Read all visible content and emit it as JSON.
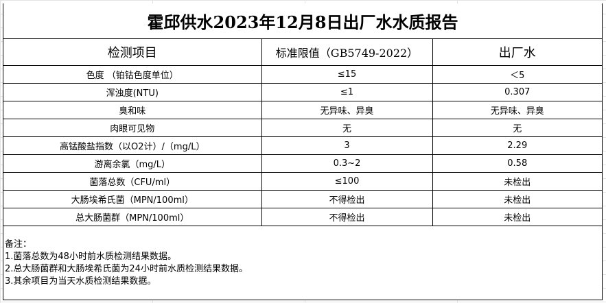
{
  "title": "霍邱供水2023年12月8日出厂水水质报告",
  "columns": [
    "检测项目",
    "标准限值（GB5749-2022）",
    "出厂水"
  ],
  "rows": [
    [
      "色度 （铂钴色度单位）",
      "≤15",
      "＜5"
    ],
    [
      "浑浊度(NTU)",
      "≤1",
      "0.307"
    ],
    [
      "臭和味",
      "无异味、异臭",
      "无异味、异臭"
    ],
    [
      "肉眼可见物",
      "无",
      "无"
    ],
    [
      "高锰酸盐指数（以O2计）/（mg/L）",
      "3",
      "2.29"
    ],
    [
      "游离余氯（mg/L）",
      "0.3~2",
      "0.58"
    ],
    [
      "菌落总数（CFU/ml）",
      "≤100",
      "未检出"
    ],
    [
      "大肠埃希氏菌（MPN/100ml）",
      "不得检出",
      "未检出"
    ],
    [
      "总大肠菌群（MPN/100ml）",
      "不得检出",
      "未检出"
    ]
  ],
  "notes": {
    "heading": "备注：",
    "lines": [
      "1.菌落总数为48小时前水质检测结果数据。",
      "2.总大肠菌群和大肠埃希氏菌为24小时前水质检测结果数据。",
      "3.其余项目为当天水质检测结果数据。"
    ]
  }
}
